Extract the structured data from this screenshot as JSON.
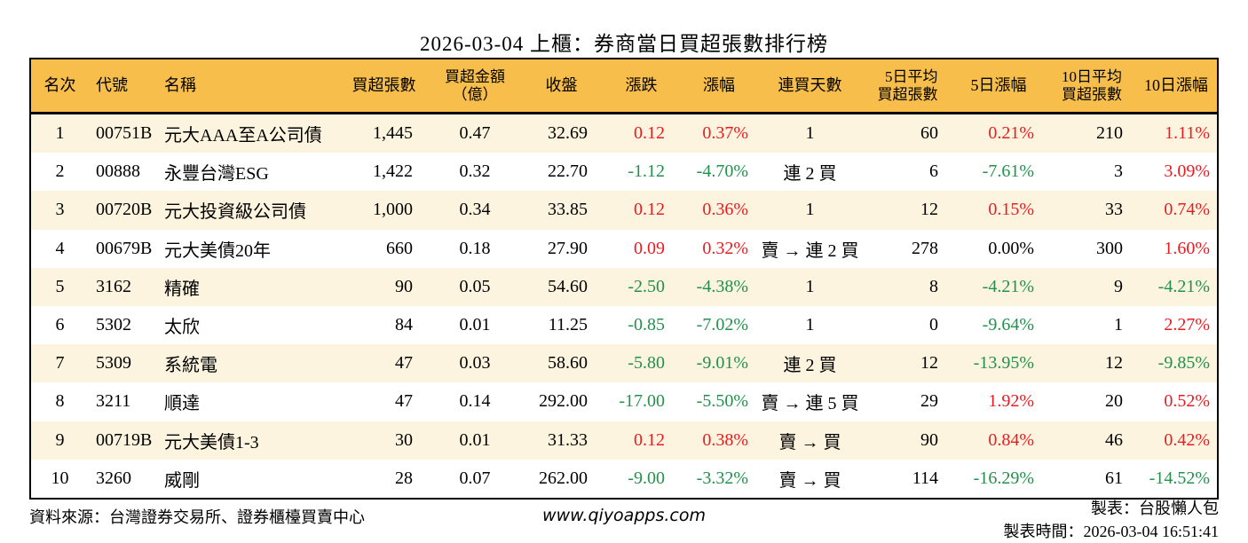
{
  "title": "2026-03-04 上櫃：券商當日買超張數排行榜",
  "colors": {
    "header_bg": "#F8BE4B",
    "row_odd_bg": "#FCF4DE",
    "row_even_bg": "#FFFFFF",
    "up_red": "#EA1B22",
    "down_green": "#23904C",
    "border": "#000000"
  },
  "table": {
    "headers": [
      "名次",
      "代號",
      "名稱",
      "買超張數",
      "買超金額\n（億）",
      "收盤",
      "漲跌",
      "漲幅",
      "連買天數",
      "5日平均\n買超張數",
      "5日漲幅",
      "10日平均\n買超張數",
      "10日漲幅"
    ],
    "rows": [
      {
        "rank": "1",
        "code": "00751B",
        "name": "元大AAA至A公司債",
        "net_volume": "1,445",
        "net_amount": "0.47",
        "close": "32.69",
        "change": "0.12",
        "change_dir": "up",
        "change_pct": "0.37%",
        "change_pct_dir": "up",
        "streak": "1",
        "avg5": "60",
        "pct5": "0.21%",
        "pct5_dir": "up",
        "avg10": "210",
        "pct10": "1.11%",
        "pct10_dir": "up"
      },
      {
        "rank": "2",
        "code": "00888",
        "name": "永豐台灣ESG",
        "net_volume": "1,422",
        "net_amount": "0.32",
        "close": "22.70",
        "change": "-1.12",
        "change_dir": "down",
        "change_pct": "-4.70%",
        "change_pct_dir": "down",
        "streak": "連 2 買",
        "avg5": "6",
        "pct5": "-7.61%",
        "pct5_dir": "down",
        "avg10": "3",
        "pct10": "3.09%",
        "pct10_dir": "up"
      },
      {
        "rank": "3",
        "code": "00720B",
        "name": "元大投資級公司債",
        "net_volume": "1,000",
        "net_amount": "0.34",
        "close": "33.85",
        "change": "0.12",
        "change_dir": "up",
        "change_pct": "0.36%",
        "change_pct_dir": "up",
        "streak": "1",
        "avg5": "12",
        "pct5": "0.15%",
        "pct5_dir": "up",
        "avg10": "33",
        "pct10": "0.74%",
        "pct10_dir": "up"
      },
      {
        "rank": "4",
        "code": "00679B",
        "name": "元大美債20年",
        "net_volume": "660",
        "net_amount": "0.18",
        "close": "27.90",
        "change": "0.09",
        "change_dir": "up",
        "change_pct": "0.32%",
        "change_pct_dir": "up",
        "streak": "賣 → 連 2 買",
        "avg5": "278",
        "pct5": "0.00%",
        "pct5_dir": "flat",
        "avg10": "300",
        "pct10": "1.60%",
        "pct10_dir": "up"
      },
      {
        "rank": "5",
        "code": "3162",
        "name": "精確",
        "net_volume": "90",
        "net_amount": "0.05",
        "close": "54.60",
        "change": "-2.50",
        "change_dir": "down",
        "change_pct": "-4.38%",
        "change_pct_dir": "down",
        "streak": "1",
        "avg5": "8",
        "pct5": "-4.21%",
        "pct5_dir": "down",
        "avg10": "9",
        "pct10": "-4.21%",
        "pct10_dir": "down"
      },
      {
        "rank": "6",
        "code": "5302",
        "name": "太欣",
        "net_volume": "84",
        "net_amount": "0.01",
        "close": "11.25",
        "change": "-0.85",
        "change_dir": "down",
        "change_pct": "-7.02%",
        "change_pct_dir": "down",
        "streak": "1",
        "avg5": "0",
        "pct5": "-9.64%",
        "pct5_dir": "down",
        "avg10": "1",
        "pct10": "2.27%",
        "pct10_dir": "up"
      },
      {
        "rank": "7",
        "code": "5309",
        "name": "系統電",
        "net_volume": "47",
        "net_amount": "0.03",
        "close": "58.60",
        "change": "-5.80",
        "change_dir": "down",
        "change_pct": "-9.01%",
        "change_pct_dir": "down",
        "streak": "連 2 買",
        "avg5": "12",
        "pct5": "-13.95%",
        "pct5_dir": "down",
        "avg10": "12",
        "pct10": "-9.85%",
        "pct10_dir": "down"
      },
      {
        "rank": "8",
        "code": "3211",
        "name": "順達",
        "net_volume": "47",
        "net_amount": "0.14",
        "close": "292.00",
        "change": "-17.00",
        "change_dir": "down",
        "change_pct": "-5.50%",
        "change_pct_dir": "down",
        "streak": "賣 → 連 5 買",
        "avg5": "29",
        "pct5": "1.92%",
        "pct5_dir": "up",
        "avg10": "20",
        "pct10": "0.52%",
        "pct10_dir": "up"
      },
      {
        "rank": "9",
        "code": "00719B",
        "name": "元大美債1-3",
        "net_volume": "30",
        "net_amount": "0.01",
        "close": "31.33",
        "change": "0.12",
        "change_dir": "up",
        "change_pct": "0.38%",
        "change_pct_dir": "up",
        "streak": "賣 → 買",
        "avg5": "90",
        "pct5": "0.84%",
        "pct5_dir": "up",
        "avg10": "46",
        "pct10": "0.42%",
        "pct10_dir": "up"
      },
      {
        "rank": "10",
        "code": "3260",
        "name": "威剛",
        "net_volume": "28",
        "net_amount": "0.07",
        "close": "262.00",
        "change": "-9.00",
        "change_dir": "down",
        "change_pct": "-3.32%",
        "change_pct_dir": "down",
        "streak": "賣 → 買",
        "avg5": "114",
        "pct5": "-16.29%",
        "pct5_dir": "down",
        "avg10": "61",
        "pct10": "-14.52%",
        "pct10_dir": "down"
      }
    ]
  },
  "footer": {
    "source": "資料來源：台灣證券交易所、證券櫃檯買賣中心",
    "website": "www.qiyoapps.com",
    "maker": "製表：台股懶人包",
    "made_time": "製表時間：2026-03-04 16:51:41"
  }
}
